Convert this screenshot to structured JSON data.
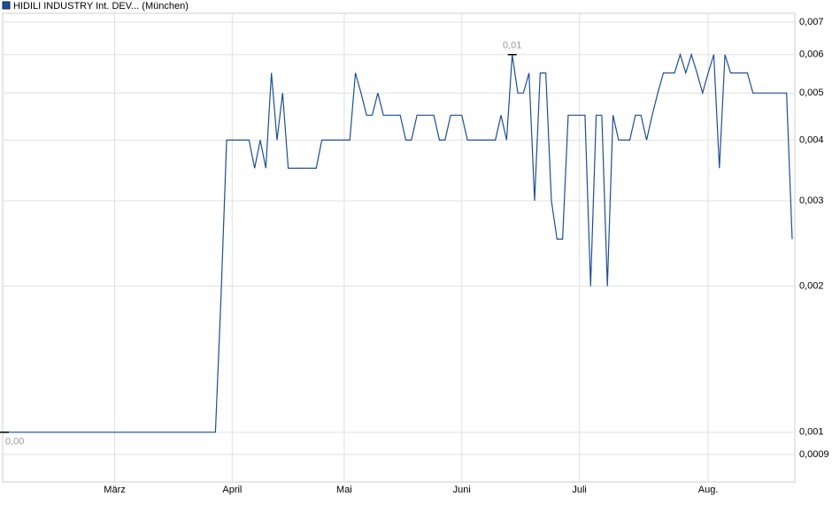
{
  "chart_data": {
    "type": "line",
    "log_y": true,
    "grid": true,
    "legend": "top-left",
    "series": [
      {
        "name": "HIDILI INDUSTRY Int. DEV...  (München)",
        "color": "#1c4f96",
        "values": [
          0.001,
          0.001,
          0.001,
          0.001,
          0.001,
          0.001,
          0.001,
          0.001,
          0.001,
          0.001,
          0.001,
          0.001,
          0.001,
          0.001,
          0.001,
          0.001,
          0.001,
          0.001,
          0.001,
          0.001,
          0.001,
          0.001,
          0.001,
          0.001,
          0.001,
          0.001,
          0.001,
          0.001,
          0.001,
          0.001,
          0.001,
          0.001,
          0.001,
          0.001,
          0.001,
          0.001,
          0.001,
          0.001,
          0.001,
          0.0019,
          0.004,
          0.004,
          0.004,
          0.004,
          0.004,
          0.0035,
          0.004,
          0.0035,
          0.0055,
          0.004,
          0.005,
          0.0035,
          0.0035,
          0.0035,
          0.0035,
          0.0035,
          0.0035,
          0.004,
          0.004,
          0.004,
          0.004,
          0.004,
          0.004,
          0.0055,
          0.005,
          0.0045,
          0.0045,
          0.005,
          0.0045,
          0.0045,
          0.0045,
          0.0045,
          0.004,
          0.004,
          0.0045,
          0.0045,
          0.0045,
          0.0045,
          0.004,
          0.004,
          0.0045,
          0.0045,
          0.0045,
          0.004,
          0.004,
          0.004,
          0.004,
          0.004,
          0.004,
          0.0045,
          0.004,
          0.006,
          0.005,
          0.005,
          0.0055,
          0.003,
          0.0055,
          0.0055,
          0.003,
          0.0025,
          0.0025,
          0.0045,
          0.0045,
          0.0045,
          0.0045,
          0.002,
          0.0045,
          0.0045,
          0.002,
          0.0045,
          0.004,
          0.004,
          0.004,
          0.0045,
          0.0045,
          0.004,
          0.0045,
          0.005,
          0.0055,
          0.0055,
          0.0055,
          0.006,
          0.0055,
          0.006,
          0.0055,
          0.005,
          0.0055,
          0.006,
          0.0035,
          0.006,
          0.0055,
          0.0055,
          0.0055,
          0.0055,
          0.005,
          0.005,
          0.005,
          0.005,
          0.005,
          0.005,
          0.005,
          0.0025
        ]
      }
    ],
    "categories": [
      null,
      null,
      null,
      null,
      null,
      null,
      null,
      null,
      null,
      null,
      null,
      null,
      null,
      null,
      null,
      null,
      null,
      null,
      null,
      null,
      "März",
      null,
      null,
      null,
      null,
      null,
      null,
      null,
      null,
      null,
      null,
      null,
      null,
      null,
      null,
      null,
      null,
      null,
      null,
      null,
      null,
      "April",
      null,
      null,
      null,
      null,
      null,
      null,
      null,
      null,
      null,
      null,
      null,
      null,
      null,
      null,
      null,
      null,
      null,
      null,
      null,
      "Mai",
      null,
      null,
      null,
      null,
      null,
      null,
      null,
      null,
      null,
      null,
      null,
      null,
      null,
      null,
      null,
      null,
      null,
      null,
      null,
      null,
      "Juni",
      null,
      null,
      null,
      null,
      null,
      null,
      null,
      null,
      null,
      null,
      null,
      null,
      null,
      null,
      null,
      null,
      null,
      null,
      null,
      null,
      "Juli",
      null,
      null,
      null,
      null,
      null,
      null,
      null,
      null,
      null,
      null,
      null,
      null,
      null,
      null,
      null,
      null,
      null,
      null,
      null,
      null,
      null,
      null,
      "Aug.",
      null,
      null,
      null,
      null,
      null,
      null,
      null,
      null,
      null,
      null,
      null,
      null,
      null,
      null,
      null
    ],
    "max_label": "0,01",
    "min_label": "0,00",
    "ylim": [
      0.00079,
      0.0073
    ],
    "yticks": [
      {
        "value": 0.0009,
        "label": "0,0009"
      },
      {
        "value": 0.001,
        "label": "0,001"
      },
      {
        "value": 0.002,
        "label": "0,002"
      },
      {
        "value": 0.003,
        "label": "0,003"
      },
      {
        "value": 0.004,
        "label": "0,004"
      },
      {
        "value": 0.005,
        "label": "0,005"
      },
      {
        "value": 0.006,
        "label": "0,006"
      },
      {
        "value": 0.007,
        "label": "0,007"
      }
    ]
  }
}
